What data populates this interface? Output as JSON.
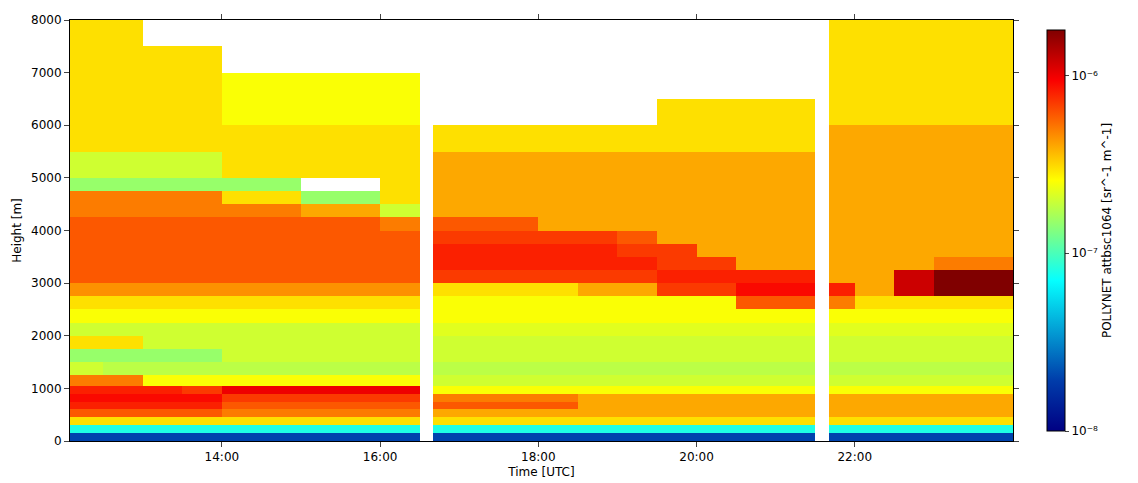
{
  "chart_data": {
    "type": "heatmap",
    "xlabel": "Time [UTC]",
    "ylabel": "Height [m]",
    "colorbar_label": "POLLYNET attbsc1064 [sr^-1 m^-1]",
    "log": true,
    "x": [
      12.08,
      12.5,
      13,
      13.5,
      14,
      14.5,
      15,
      15.5,
      16,
      16.5,
      16.67,
      17,
      17.5,
      18,
      18.5,
      19,
      19.5,
      20,
      20.5,
      21,
      21.5,
      21.67,
      22,
      22.5,
      23,
      23.5,
      24
    ],
    "y": [
      0,
      150,
      300,
      450,
      600,
      750,
      900,
      1050,
      1250,
      1500,
      1750,
      2000,
      2250,
      2500,
      2750,
      3000,
      3250,
      3500,
      3750,
      4000,
      4250,
      4500,
      4750,
      5000,
      5500,
      6000,
      6500,
      7000,
      7500,
      8000
    ],
    "z": [
      [
        2e-08,
        2e-08,
        2e-08,
        2e-08,
        2e-08,
        2e-08,
        2e-08,
        2e-08,
        2e-08,
        null,
        2e-08,
        2e-08,
        2e-08,
        2e-08,
        2e-08,
        2e-08,
        2e-08,
        2e-08,
        2e-08,
        2e-08,
        null,
        2e-08,
        2e-08,
        2e-08,
        2e-08,
        2e-08
      ],
      [
        8e-08,
        8e-08,
        8e-08,
        8e-08,
        8e-08,
        8e-08,
        8e-08,
        8e-08,
        8e-08,
        null,
        8e-08,
        8e-08,
        8e-08,
        8e-08,
        8e-08,
        8e-08,
        8e-08,
        8e-08,
        8e-08,
        8e-08,
        null,
        8e-08,
        8e-08,
        8e-08,
        8e-08,
        8e-08
      ],
      [
        3e-07,
        3e-07,
        3e-07,
        3e-07,
        3e-07,
        3e-07,
        3e-07,
        3e-07,
        3e-07,
        null,
        3e-07,
        3e-07,
        3e-07,
        3e-07,
        3e-07,
        3e-07,
        3e-07,
        3e-07,
        3e-07,
        3e-07,
        null,
        3e-07,
        3e-07,
        3e-07,
        3e-07,
        3e-07
      ],
      [
        6e-07,
        6e-07,
        6e-07,
        6e-07,
        5e-07,
        5e-07,
        5e-07,
        5e-07,
        5e-07,
        null,
        4e-07,
        4e-07,
        4e-07,
        4e-07,
        4e-07,
        4e-07,
        4e-07,
        4e-07,
        4e-07,
        4e-07,
        null,
        4e-07,
        4e-07,
        4e-07,
        4e-07,
        4e-07
      ],
      [
        8e-07,
        8e-07,
        8e-07,
        8e-07,
        6e-07,
        6e-07,
        6e-07,
        6e-07,
        6e-07,
        null,
        6e-07,
        6e-07,
        6e-07,
        6e-07,
        4e-07,
        4e-07,
        4e-07,
        4e-07,
        4e-07,
        4e-07,
        null,
        4e-07,
        4e-07,
        4e-07,
        4e-07,
        4e-07
      ],
      [
        9e-07,
        9e-07,
        9e-07,
        9e-07,
        7e-07,
        7e-07,
        7e-07,
        7e-07,
        7e-07,
        null,
        5e-07,
        5e-07,
        5e-07,
        5e-07,
        4e-07,
        4e-07,
        4e-07,
        4e-07,
        4e-07,
        4e-07,
        null,
        4e-07,
        4e-07,
        4e-07,
        4e-07,
        4e-07
      ],
      [
        8e-07,
        8e-07,
        8e-07,
        7e-07,
        1e-06,
        1e-06,
        1e-06,
        1e-06,
        1e-06,
        null,
        2.5e-07,
        2.5e-07,
        2.5e-07,
        2.5e-07,
        2.5e-07,
        2.5e-07,
        2.5e-07,
        2.5e-07,
        2.5e-07,
        2.5e-07,
        null,
        2.5e-07,
        2.5e-07,
        2.5e-07,
        2.5e-07,
        2.5e-07
      ],
      [
        5e-07,
        5e-07,
        2.5e-07,
        2.5e-07,
        2.5e-07,
        2.5e-07,
        2.5e-07,
        2.5e-07,
        2.5e-07,
        null,
        2e-07,
        2e-07,
        2e-07,
        2e-07,
        2e-07,
        2e-07,
        2e-07,
        2e-07,
        2e-07,
        2e-07,
        null,
        2e-07,
        2e-07,
        2e-07,
        2e-07,
        2e-07
      ],
      [
        2e-07,
        1.8e-07,
        1.8e-07,
        1.8e-07,
        1.8e-07,
        1.8e-07,
        1.8e-07,
        1.8e-07,
        1.8e-07,
        null,
        1.8e-07,
        1.8e-07,
        1.8e-07,
        1.8e-07,
        1.8e-07,
        1.8e-07,
        1.8e-07,
        1.8e-07,
        1.8e-07,
        1.8e-07,
        null,
        1.8e-07,
        1.8e-07,
        1.8e-07,
        1.8e-07,
        1.8e-07
      ],
      [
        1.5e-07,
        1.5e-07,
        1.5e-07,
        1.5e-07,
        2e-07,
        2e-07,
        2e-07,
        2e-07,
        2e-07,
        null,
        2e-07,
        2e-07,
        2e-07,
        2e-07,
        2e-07,
        2e-07,
        2e-07,
        2e-07,
        2e-07,
        2e-07,
        null,
        2e-07,
        2e-07,
        2e-07,
        2e-07,
        2e-07
      ],
      [
        3e-07,
        3e-07,
        2e-07,
        2e-07,
        2e-07,
        2e-07,
        2e-07,
        2e-07,
        2e-07,
        null,
        2e-07,
        2e-07,
        2e-07,
        2e-07,
        2e-07,
        2e-07,
        2e-07,
        2e-07,
        2e-07,
        2e-07,
        null,
        2e-07,
        2e-07,
        2e-07,
        2e-07,
        2e-07
      ],
      [
        2e-07,
        2e-07,
        2e-07,
        2e-07,
        2e-07,
        2e-07,
        2e-07,
        2e-07,
        2e-07,
        null,
        2.2e-07,
        2.2e-07,
        2.2e-07,
        2.2e-07,
        2.2e-07,
        2.2e-07,
        2.2e-07,
        2.2e-07,
        2.2e-07,
        2.2e-07,
        null,
        2.2e-07,
        2.2e-07,
        2.2e-07,
        2.2e-07,
        2.2e-07
      ],
      [
        2.5e-07,
        2.5e-07,
        2.5e-07,
        2.5e-07,
        2.5e-07,
        2.5e-07,
        2.5e-07,
        2.5e-07,
        2.5e-07,
        null,
        2.5e-07,
        2.5e-07,
        2.5e-07,
        2.5e-07,
        2.5e-07,
        2.5e-07,
        2.5e-07,
        2.5e-07,
        2.5e-07,
        2.5e-07,
        null,
        2.5e-07,
        2.5e-07,
        2.5e-07,
        2.5e-07,
        2.5e-07
      ],
      [
        3e-07,
        3e-07,
        3e-07,
        3e-07,
        3e-07,
        3e-07,
        3e-07,
        3e-07,
        3e-07,
        null,
        2.5e-07,
        2.5e-07,
        2.5e-07,
        2.5e-07,
        2.5e-07,
        2.5e-07,
        2.5e-07,
        2.5e-07,
        6e-07,
        6e-07,
        null,
        5e-07,
        3e-07,
        3e-07,
        3e-07,
        3e-07
      ],
      [
        4.5e-07,
        4.5e-07,
        4.5e-07,
        4.5e-07,
        4.5e-07,
        4.5e-07,
        4.5e-07,
        4.5e-07,
        4.5e-07,
        null,
        3e-07,
        3e-07,
        3e-07,
        3e-07,
        4e-07,
        4e-07,
        7e-07,
        7e-07,
        9e-07,
        9e-07,
        null,
        8e-07,
        4e-07,
        1.2e-06,
        1.8e-06,
        1.8e-06
      ],
      [
        6e-07,
        6e-07,
        6e-07,
        6e-07,
        6e-07,
        6e-07,
        6e-07,
        6e-07,
        6e-07,
        null,
        7e-07,
        7e-07,
        7e-07,
        7e-07,
        7e-07,
        7e-07,
        8e-07,
        8e-07,
        8e-07,
        8e-07,
        null,
        4e-07,
        4e-07,
        1.2e-06,
        1.8e-06,
        1.8e-06
      ],
      [
        6e-07,
        6e-07,
        6e-07,
        6e-07,
        6e-07,
        6e-07,
        6e-07,
        6e-07,
        6e-07,
        null,
        8e-07,
        8e-07,
        8e-07,
        8e-07,
        8e-07,
        8e-07,
        7e-07,
        7e-07,
        4e-07,
        4e-07,
        null,
        4e-07,
        4e-07,
        4e-07,
        5e-07,
        5e-07
      ],
      [
        6e-07,
        6e-07,
        6e-07,
        6e-07,
        6e-07,
        6e-07,
        6e-07,
        6e-07,
        6e-07,
        null,
        8e-07,
        8e-07,
        8e-07,
        8e-07,
        8e-07,
        7e-07,
        7e-07,
        4e-07,
        4e-07,
        4e-07,
        null,
        4e-07,
        4e-07,
        4e-07,
        4e-07,
        4e-07
      ],
      [
        6e-07,
        6e-07,
        6e-07,
        6e-07,
        6e-07,
        6e-07,
        6e-07,
        6e-07,
        6e-07,
        null,
        7e-07,
        7e-07,
        7e-07,
        7e-07,
        7e-07,
        6e-07,
        4e-07,
        4e-07,
        4e-07,
        4e-07,
        null,
        4e-07,
        4e-07,
        4e-07,
        4e-07,
        4e-07
      ],
      [
        6e-07,
        6e-07,
        6e-07,
        6e-07,
        6e-07,
        6e-07,
        6e-07,
        6e-07,
        5e-07,
        null,
        6e-07,
        6e-07,
        6e-07,
        4e-07,
        4e-07,
        4e-07,
        4e-07,
        4e-07,
        4e-07,
        4e-07,
        null,
        4e-07,
        4e-07,
        4e-07,
        4e-07,
        4e-07
      ],
      [
        5e-07,
        5e-07,
        5e-07,
        5e-07,
        5e-07,
        5e-07,
        4e-07,
        4e-07,
        2e-07,
        null,
        4e-07,
        4e-07,
        4e-07,
        4e-07,
        4e-07,
        4e-07,
        4e-07,
        4e-07,
        4e-07,
        4e-07,
        null,
        4e-07,
        4e-07,
        4e-07,
        4e-07,
        4e-07
      ],
      [
        5e-07,
        5e-07,
        5e-07,
        5e-07,
        3e-07,
        3e-07,
        1.5e-07,
        1.5e-07,
        3e-07,
        null,
        4e-07,
        4e-07,
        4e-07,
        4e-07,
        4e-07,
        4e-07,
        4e-07,
        4e-07,
        4e-07,
        4e-07,
        null,
        4e-07,
        4e-07,
        4e-07,
        4e-07,
        4e-07
      ],
      [
        1.5e-07,
        1.5e-07,
        1.5e-07,
        1.5e-07,
        1.5e-07,
        1.5e-07,
        null,
        null,
        3e-07,
        null,
        4e-07,
        4e-07,
        4e-07,
        4e-07,
        4e-07,
        4e-07,
        4e-07,
        4e-07,
        4e-07,
        4e-07,
        null,
        4e-07,
        4e-07,
        4e-07,
        4e-07,
        4e-07
      ],
      [
        2e-07,
        2e-07,
        2e-07,
        2e-07,
        3e-07,
        3e-07,
        3e-07,
        3e-07,
        3e-07,
        null,
        4e-07,
        4e-07,
        4e-07,
        4e-07,
        4e-07,
        4e-07,
        4e-07,
        4e-07,
        4e-07,
        4e-07,
        null,
        4e-07,
        4e-07,
        4e-07,
        4e-07,
        4e-07
      ],
      [
        3e-07,
        3e-07,
        3e-07,
        3e-07,
        3e-07,
        3e-07,
        3e-07,
        3e-07,
        3e-07,
        null,
        3e-07,
        3e-07,
        3e-07,
        3e-07,
        3e-07,
        3e-07,
        3e-07,
        3e-07,
        3e-07,
        3e-07,
        null,
        4e-07,
        4e-07,
        4e-07,
        4e-07,
        4e-07
      ],
      [
        3e-07,
        3e-07,
        3e-07,
        3e-07,
        2.5e-07,
        2.5e-07,
        2.5e-07,
        2.5e-07,
        2.5e-07,
        null,
        null,
        null,
        null,
        null,
        null,
        null,
        3e-07,
        3e-07,
        3e-07,
        3e-07,
        null,
        3e-07,
        3e-07,
        3e-07,
        3e-07,
        3e-07
      ],
      [
        3e-07,
        3e-07,
        3e-07,
        3e-07,
        2.5e-07,
        2.5e-07,
        2.5e-07,
        2.5e-07,
        2.5e-07,
        null,
        null,
        null,
        null,
        null,
        null,
        null,
        null,
        null,
        null,
        null,
        null,
        3e-07,
        3e-07,
        3e-07,
        3e-07,
        3e-07
      ],
      [
        3e-07,
        3e-07,
        3e-07,
        3e-07,
        null,
        null,
        null,
        null,
        null,
        null,
        null,
        null,
        null,
        null,
        null,
        null,
        null,
        null,
        null,
        null,
        null,
        3e-07,
        3e-07,
        3e-07,
        3e-07,
        3e-07
      ],
      [
        3e-07,
        3e-07,
        null,
        null,
        null,
        null,
        null,
        null,
        null,
        null,
        null,
        null,
        null,
        null,
        null,
        null,
        null,
        null,
        null,
        null,
        null,
        3e-07,
        3e-07,
        3e-07,
        3e-07,
        3e-07
      ]
    ],
    "xlim": [
      12.08,
      24
    ],
    "xticks": [
      {
        "value": 14,
        "label": "14:00"
      },
      {
        "value": 16,
        "label": "16:00"
      },
      {
        "value": 18,
        "label": "18:00"
      },
      {
        "value": 20,
        "label": "20:00"
      },
      {
        "value": 22,
        "label": "22:00"
      }
    ],
    "ylim": [
      0,
      8000
    ],
    "yticks": [
      0,
      1000,
      2000,
      3000,
      4000,
      5000,
      6000,
      7000,
      8000
    ],
    "zlim": [
      1e-08,
      1.8e-06
    ],
    "zticks": [
      {
        "value": 1e-08,
        "label": "10⁻⁸"
      },
      {
        "value": 1e-07,
        "label": "10⁻⁷"
      },
      {
        "value": 1e-06,
        "label": "10⁻⁶"
      }
    ]
  }
}
